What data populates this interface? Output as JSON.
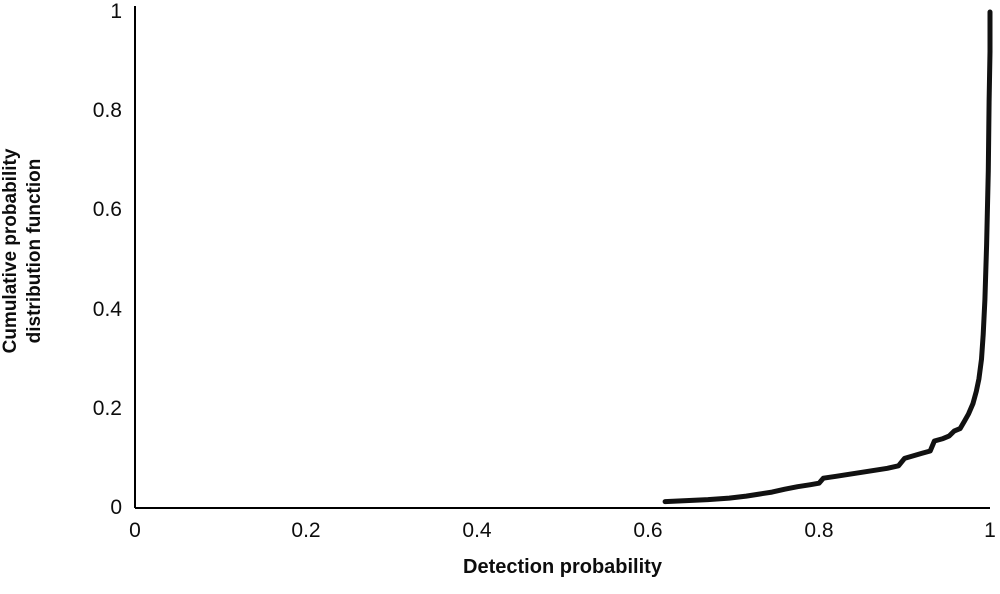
{
  "chart_data": {
    "type": "line",
    "title": "",
    "xlabel": "Detection probability",
    "ylabel": "Cumulative probability\ndistribution function",
    "xlim": [
      0,
      1
    ],
    "ylim": [
      0,
      1
    ],
    "x_ticks": [
      0,
      0.2,
      0.4,
      0.6,
      0.8,
      1
    ],
    "x_tick_labels": [
      "0",
      "0.2",
      "0.4",
      "0.6",
      "0.8",
      "1"
    ],
    "y_ticks": [
      0,
      0.2,
      0.4,
      0.6,
      0.8,
      1
    ],
    "y_tick_labels": [
      "0",
      "0.2",
      "0.4",
      "0.6",
      "0.8",
      "1"
    ],
    "grid": false,
    "legend_position": "none",
    "axis_color": "#000000",
    "line_color": "#111111",
    "line_width": 5,
    "series": [
      {
        "name": "Cumulative probability distribution function",
        "x": [
          0.62,
          0.645,
          0.67,
          0.695,
          0.715,
          0.73,
          0.745,
          0.76,
          0.775,
          0.79,
          0.8,
          0.805,
          0.82,
          0.835,
          0.85,
          0.865,
          0.88,
          0.893,
          0.9,
          0.91,
          0.92,
          0.93,
          0.935,
          0.945,
          0.952,
          0.958,
          0.965,
          0.97,
          0.975,
          0.98,
          0.984,
          0.987,
          0.99,
          0.992,
          0.994,
          0.996,
          0.998,
          0.999,
          1.0,
          1.0
        ],
        "y": [
          0.013,
          0.015,
          0.017,
          0.02,
          0.024,
          0.028,
          0.032,
          0.038,
          0.043,
          0.047,
          0.05,
          0.06,
          0.064,
          0.068,
          0.072,
          0.076,
          0.08,
          0.085,
          0.1,
          0.105,
          0.11,
          0.115,
          0.135,
          0.14,
          0.145,
          0.155,
          0.16,
          0.175,
          0.19,
          0.21,
          0.235,
          0.26,
          0.3,
          0.35,
          0.42,
          0.53,
          0.68,
          0.82,
          0.92,
          1.0
        ]
      }
    ]
  }
}
